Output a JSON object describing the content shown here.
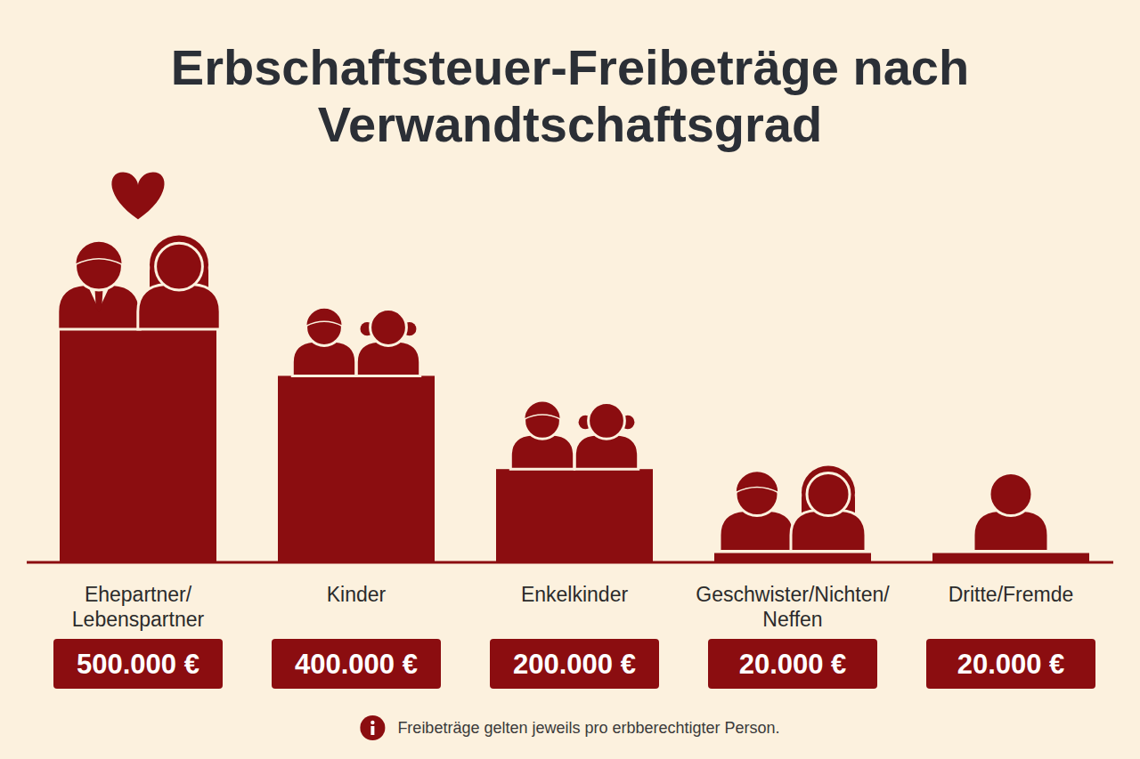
{
  "chart_data": {
    "type": "bar",
    "title": "Erbschaftsteuer-Freibeträge nach Verwandtschaftsgrad",
    "categories": [
      "Ehepartner/Lebenspartner",
      "Kinder",
      "Enkelkinder",
      "Geschwister/Nichten/Neffen",
      "Dritte/Fremde"
    ],
    "values": [
      500000,
      400000,
      200000,
      20000,
      20000
    ],
    "value_labels": [
      "500.000 €",
      "400.000 €",
      "200.000 €",
      "20.000 €",
      "20.000 €"
    ],
    "color": "#8b0d10",
    "ylim": [
      0,
      500000
    ],
    "data_labels": true,
    "tick_labels": false,
    "grid": false,
    "annotations": [
      "Freibeträge gelten jeweils pro erbberechtigter Person."
    ]
  }
}
